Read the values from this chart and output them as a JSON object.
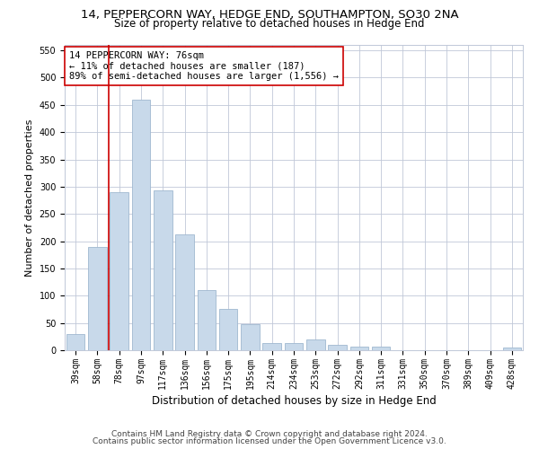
{
  "title_line1": "14, PEPPERCORN WAY, HEDGE END, SOUTHAMPTON, SO30 2NA",
  "title_line2": "Size of property relative to detached houses in Hedge End",
  "xlabel": "Distribution of detached houses by size in Hedge End",
  "ylabel": "Number of detached properties",
  "categories": [
    "39sqm",
    "58sqm",
    "78sqm",
    "97sqm",
    "117sqm",
    "136sqm",
    "156sqm",
    "175sqm",
    "195sqm",
    "214sqm",
    "234sqm",
    "253sqm",
    "272sqm",
    "292sqm",
    "311sqm",
    "331sqm",
    "350sqm",
    "370sqm",
    "389sqm",
    "409sqm",
    "428sqm"
  ],
  "values": [
    30,
    190,
    290,
    460,
    293,
    213,
    110,
    75,
    47,
    13,
    13,
    20,
    10,
    6,
    6,
    0,
    0,
    0,
    0,
    0,
    5
  ],
  "bar_color": "#c8d9ea",
  "bar_edge_color": "#a0b8d0",
  "vline_x": 1.5,
  "vline_color": "#cc0000",
  "annotation_text": "14 PEPPERCORN WAY: 76sqm\n← 11% of detached houses are smaller (187)\n89% of semi-detached houses are larger (1,556) →",
  "annotation_box_color": "#cc0000",
  "ylim": [
    0,
    560
  ],
  "yticks": [
    0,
    50,
    100,
    150,
    200,
    250,
    300,
    350,
    400,
    450,
    500,
    550
  ],
  "footer_line1": "Contains HM Land Registry data © Crown copyright and database right 2024.",
  "footer_line2": "Contains public sector information licensed under the Open Government Licence v3.0.",
  "background_color": "#ffffff",
  "grid_color": "#c0c8d8",
  "title_fontsize": 9.5,
  "subtitle_fontsize": 8.5,
  "axis_label_fontsize": 8,
  "tick_fontsize": 7,
  "annotation_fontsize": 7.5,
  "footer_fontsize": 6.5
}
